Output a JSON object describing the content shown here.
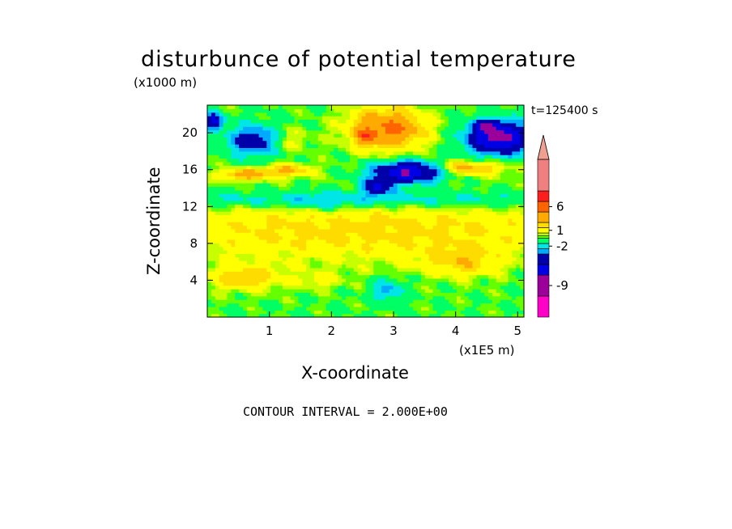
{
  "chart_data": {
    "type": "heatmap",
    "title": "disturbunce of potential temperature",
    "xlabel": "X-coordinate",
    "ylabel": "Z-coordinate",
    "x_unit_label": "(x1E5 m)",
    "y_unit_label": "(x1000 m)",
    "time_label": "t=125400 s",
    "contour_interval_label": "CONTOUR INTERVAL = 2.000E+00",
    "xlim": [
      0,
      5.1
    ],
    "ylim": [
      0,
      23
    ],
    "x_ticks": [
      "1",
      "2",
      "3",
      "4",
      "5"
    ],
    "y_ticks": [
      "4",
      "8",
      "12",
      "16",
      "20"
    ],
    "colorbar": {
      "tick_labels": [
        "6",
        "1",
        "-2",
        "-9"
      ],
      "levels": [
        {
          "min": -15,
          "max": -11,
          "color": "#ff00c8"
        },
        {
          "min": -11,
          "max": -7,
          "color": "#9b009b"
        },
        {
          "min": -7,
          "max": -5,
          "color": "#0000e6"
        },
        {
          "min": -5,
          "max": -3,
          "color": "#0000a8"
        },
        {
          "min": -3,
          "max": -2,
          "color": "#00aaff"
        },
        {
          "min": -2,
          "max": -1,
          "color": "#00e6e6"
        },
        {
          "min": -1,
          "max": 0,
          "color": "#00ff64"
        },
        {
          "min": 0,
          "max": 0.5,
          "color": "#64ff00"
        },
        {
          "min": 0.5,
          "max": 1,
          "color": "#c8ff00"
        },
        {
          "min": 1,
          "max": 2,
          "color": "#ffff00"
        },
        {
          "min": 2,
          "max": 3,
          "color": "#ffdc00"
        },
        {
          "min": 3,
          "max": 5,
          "color": "#ffaa00"
        },
        {
          "min": 5,
          "max": 7,
          "color": "#ff6400"
        },
        {
          "min": 7,
          "max": 9,
          "color": "#ff1e1e"
        },
        {
          "min": 9,
          "max": 15,
          "color": "#f08080"
        }
      ],
      "extend_top_color": "#f0a090"
    },
    "grid": false
  }
}
